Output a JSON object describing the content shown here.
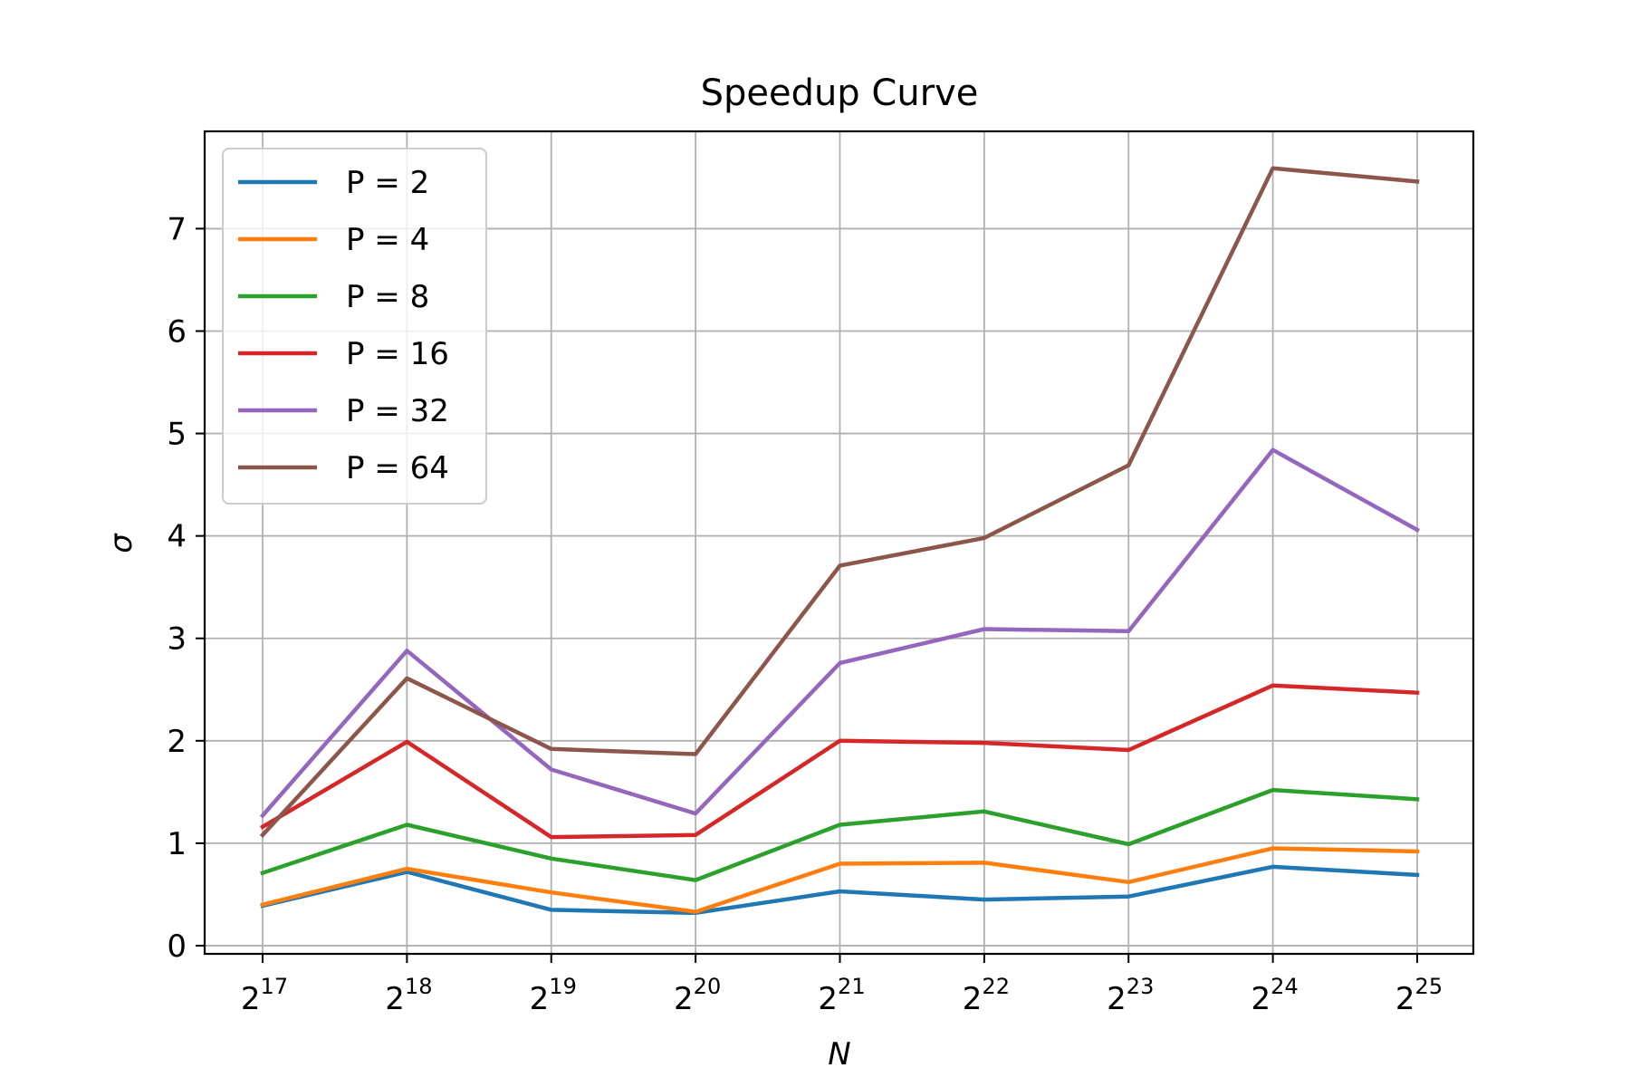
{
  "chart_data": {
    "type": "line",
    "title": "Speedup Curve",
    "xlabel": "N",
    "ylabel": "σ",
    "x_base": "2",
    "x_exponents": [
      "17",
      "18",
      "19",
      "20",
      "21",
      "22",
      "23",
      "24",
      "25"
    ],
    "y_ticks": [
      "0",
      "1",
      "2",
      "3",
      "4",
      "5",
      "6",
      "7"
    ],
    "ylim": [
      -0.08,
      7.95
    ],
    "grid": true,
    "legend_position": "top-left",
    "series": [
      {
        "name": "P = 2",
        "color": "#1f77b4",
        "values": [
          0.39,
          0.72,
          0.35,
          0.32,
          0.53,
          0.45,
          0.48,
          0.77,
          0.69
        ]
      },
      {
        "name": "P = 4",
        "color": "#ff7f0e",
        "values": [
          0.4,
          0.75,
          0.52,
          0.33,
          0.8,
          0.81,
          0.62,
          0.95,
          0.92
        ]
      },
      {
        "name": "P = 8",
        "color": "#2ca02c",
        "values": [
          0.71,
          1.18,
          0.85,
          0.64,
          1.18,
          1.31,
          0.99,
          1.52,
          1.43
        ]
      },
      {
        "name": "P = 16",
        "color": "#d62728",
        "values": [
          1.16,
          1.99,
          1.06,
          1.08,
          2.0,
          1.98,
          1.91,
          2.54,
          2.47
        ]
      },
      {
        "name": "P = 32",
        "color": "#9467bd",
        "values": [
          1.27,
          2.88,
          1.72,
          1.29,
          2.76,
          3.09,
          3.07,
          4.84,
          4.06
        ]
      },
      {
        "name": "P = 64",
        "color": "#8c564b",
        "values": [
          1.08,
          2.61,
          1.92,
          1.87,
          3.71,
          3.98,
          4.69,
          7.59,
          7.46
        ]
      }
    ]
  }
}
